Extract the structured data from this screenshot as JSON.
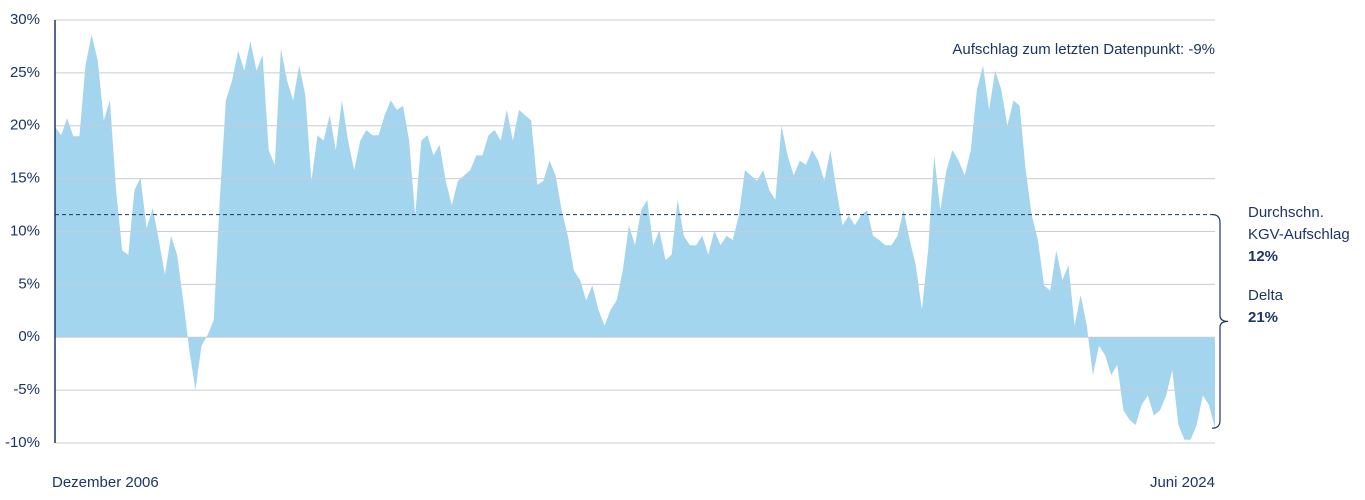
{
  "chart_data": {
    "type": "area",
    "annotation": "Aufschlag zum letzten Datenpunkt: -9%",
    "categories": [
      "Dezember 2006",
      null,
      null,
      null,
      null,
      null,
      null,
      null,
      null,
      null,
      null,
      null,
      null,
      null,
      null,
      null,
      null,
      null,
      null,
      null,
      null,
      null,
      null,
      null,
      null,
      null,
      null,
      null,
      null,
      null,
      null,
      null,
      null,
      null,
      null,
      null,
      null,
      null,
      null,
      null,
      null,
      null,
      null,
      null,
      null,
      null,
      null,
      null,
      null,
      null,
      null,
      null,
      null,
      null,
      null,
      null,
      null,
      null,
      null,
      null,
      null,
      null,
      null,
      null,
      null,
      null,
      null,
      null,
      null,
      null,
      null,
      null,
      null,
      null,
      null,
      null,
      null,
      null,
      null,
      null,
      null,
      null,
      null,
      null,
      null,
      null,
      null,
      null,
      null,
      null,
      null,
      null,
      null,
      null,
      null,
      null,
      null,
      null,
      null,
      null,
      null,
      null,
      null,
      null,
      null,
      null,
      null,
      null,
      null,
      null,
      null,
      null,
      null,
      null,
      null,
      null,
      null,
      null,
      null,
      null,
      null,
      null,
      null,
      null,
      null,
      null,
      null,
      null,
      null,
      null,
      null,
      null,
      null,
      null,
      null,
      null,
      null,
      null,
      null,
      null,
      null,
      null,
      null,
      null,
      null,
      null,
      null,
      null,
      null,
      null,
      null,
      null,
      null,
      null,
      null,
      null,
      null,
      null,
      null,
      null,
      null,
      null,
      null,
      null,
      null,
      null,
      null,
      null,
      null,
      null,
      null,
      null,
      null,
      null,
      null,
      null,
      null,
      null,
      null,
      null,
      null,
      null,
      null,
      null,
      null,
      null,
      null,
      null,
      null,
      null,
      "Juni 2024"
    ],
    "values": [
      19.9,
      19.1,
      20.7,
      19,
      19,
      25.7,
      28.6,
      26.2,
      20.5,
      22.4,
      13.9,
      8.2,
      7.8,
      13.9,
      15.1,
      10.3,
      12.2,
      9.2,
      5.9,
      9.6,
      7.8,
      3.5,
      -1.2,
      -5,
      -0.8,
      0.2,
      1.6,
      13,
      22.4,
      24.3,
      27.1,
      25.2,
      28,
      25.2,
      26.7,
      17.7,
      16.3,
      27.3,
      24.3,
      22.4,
      25.7,
      22.9,
      14.8,
      19.1,
      18.6,
      21,
      17.7,
      22.4,
      18.6,
      15.8,
      18.6,
      19.6,
      19.1,
      19.1,
      21,
      22.4,
      21.5,
      21.9,
      18.6,
      11.5,
      18.6,
      19.1,
      17.2,
      18.2,
      14.8,
      12.5,
      14.8,
      15.3,
      15.8,
      17.2,
      17.2,
      19.1,
      19.6,
      18.6,
      21.5,
      18.6,
      21.5,
      21,
      20.5,
      14.4,
      14.8,
      16.7,
      15.3,
      12,
      9.6,
      6.3,
      5.4,
      3.5,
      4.9,
      2.6,
      1.1,
      2.6,
      3.5,
      6.3,
      10.6,
      8.7,
      12,
      13,
      8.7,
      10.1,
      7.3,
      7.8,
      13,
      9.6,
      8.7,
      8.7,
      9.6,
      7.8,
      10.1,
      8.7,
      9.6,
      9.2,
      11.5,
      15.8,
      15.3,
      14.8,
      15.8,
      13.9,
      13,
      20,
      17.2,
      15.3,
      16.7,
      16.3,
      17.7,
      16.7,
      14.8,
      17.7,
      13.9,
      10.6,
      11.5,
      10.6,
      11.5,
      12,
      9.6,
      9.2,
      8.7,
      8.7,
      9.6,
      12,
      9.2,
      6.8,
      2.6,
      8.2,
      17.2,
      12,
      15.8,
      17.7,
      16.7,
      15.3,
      17.7,
      23.4,
      25.7,
      21.5,
      25.2,
      23.4,
      20,
      22.4,
      21.9,
      15.8,
      11.5,
      9.2,
      4.9,
      4.4,
      8.2,
      5.4,
      6.8,
      1.1,
      4,
      1.1,
      -3.6,
      -0.8,
      -1.7,
      -3.6,
      -2.6,
      -6.9,
      -7.8,
      -8.3,
      -6.4,
      -5.5,
      -7.4,
      -6.9,
      -5.5,
      -3.1,
      -8.3,
      -9.7,
      -9.7,
      -8.3,
      -5.5,
      -6.4,
      -8.6
    ],
    "color": "#a3d5ee",
    "ylim": [
      -10,
      30
    ],
    "yticks": [
      {
        "value": -10,
        "label": "-10%"
      },
      {
        "value": -5,
        "label": "-5%"
      },
      {
        "value": 0,
        "label": "0%"
      },
      {
        "value": 5,
        "label": "5%"
      },
      {
        "value": 10,
        "label": "10%"
      },
      {
        "value": 15,
        "label": "15%"
      },
      {
        "value": 20,
        "label": "20%"
      },
      {
        "value": 25,
        "label": "25%"
      },
      {
        "value": 30,
        "label": "30%"
      }
    ],
    "grid": true,
    "average": {
      "value": 11.6,
      "label_lines": [
        "Durchschn.",
        "KGV-Aufschlag"
      ],
      "value_label": "12%"
    },
    "delta": {
      "label": "Delta",
      "value_label": "21%"
    }
  }
}
